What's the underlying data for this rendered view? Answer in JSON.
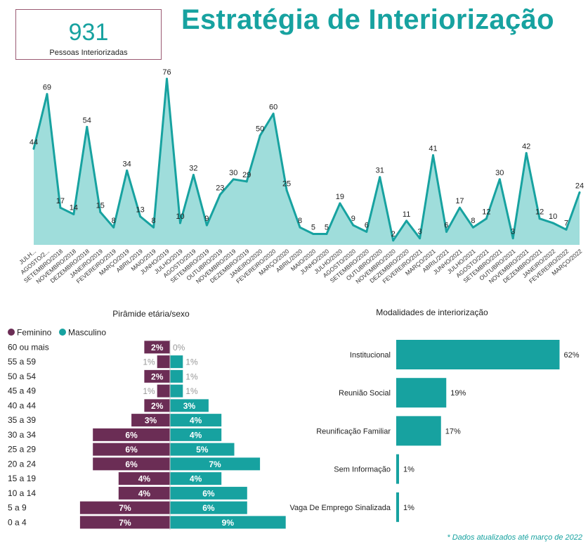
{
  "kpi": {
    "value": "931",
    "label": "Pessoas Interiorizadas"
  },
  "title": "Estratégia de Interiorização",
  "footnote": "* Dados atualizados até março de 2022",
  "colors": {
    "teal": "#17a2a0",
    "tealFill": "#9fdddb",
    "purple": "#6b2d55",
    "light": "#999999"
  },
  "chart_data": [
    {
      "type": "area",
      "title": "",
      "categories": [
        "JULH...",
        "AGOSTO/2...",
        "SETEMBRO/2018",
        "NOVEMBRO/2018",
        "DEZEMBRO/2018",
        "JANEIRO/2019",
        "FEVEREIRO/2019",
        "MARÇO/2019",
        "ABRIL/2019",
        "MAIO/2019",
        "JUNHO/2019",
        "JULHO/2019",
        "AGOSTO/2019",
        "SETEMBRO/2019",
        "OUTUBRO/2019",
        "NOVEMBRO/2019",
        "DEZEMBRO/2019",
        "JANEIRO/2020",
        "FEVEREIRO/2020",
        "MARÇO/2020",
        "ABRIL/2020",
        "MAIO/2020",
        "JUNHO/2020",
        "JULHO/2020",
        "AGOSTO/2020",
        "SETEMBRO/2020",
        "OUTUBRO/2020",
        "NOVEMBRO/2020",
        "DEZEMBRO/2020",
        "FEVEREIRO/2021",
        "MARÇO/2021",
        "ABRIL/2021",
        "JUNHO/2021",
        "JULHO/2021",
        "AGOSTO/2021",
        "SETEMBRO/2021",
        "OUTUBRO/2021",
        "NOVEMBRO/2021",
        "DEZEMBRO/2021",
        "JANEIRO/2022",
        "FEVEREIRO/2022",
        "MARÇO/2022"
      ],
      "values": [
        44,
        69,
        17,
        14,
        54,
        15,
        8,
        34,
        13,
        8,
        76,
        10,
        32,
        9,
        23,
        30,
        29,
        50,
        60,
        25,
        8,
        5,
        5,
        19,
        9,
        6,
        31,
        2,
        11,
        3,
        41,
        6,
        17,
        8,
        12,
        30,
        3,
        42,
        12,
        10,
        7,
        24
      ],
      "ylim": [
        0,
        80
      ]
    },
    {
      "type": "bar",
      "orientation": "horizontal-diverging",
      "title": "Pirâmide etária/sexo",
      "legend": [
        "Feminino",
        "Masculino"
      ],
      "categories": [
        "60 ou mais",
        "55 a 59",
        "50 a 54",
        "45 a 49",
        "40 a 44",
        "35 a 39",
        "30 a 34",
        "25 a 29",
        "20 a 24",
        "15 a 19",
        "10 a 14",
        "5 a 9",
        "0 a 4"
      ],
      "series": [
        {
          "name": "Feminino",
          "values": [
            2,
            1,
            2,
            1,
            2,
            3,
            6,
            6,
            6,
            4,
            4,
            7,
            7
          ]
        },
        {
          "name": "Masculino",
          "values": [
            0,
            1,
            1,
            1,
            3,
            4,
            4,
            5,
            7,
            4,
            6,
            6,
            9
          ]
        }
      ],
      "unit": "%"
    },
    {
      "type": "bar",
      "orientation": "horizontal",
      "title": "Modalidades de interiorização",
      "categories": [
        "Institucional",
        "Reunião Social",
        "Reunificação Familiar",
        "Sem Informação",
        "Vaga De Emprego Sinalizada"
      ],
      "values": [
        62,
        19,
        17,
        1,
        1
      ],
      "unit": "%"
    }
  ]
}
